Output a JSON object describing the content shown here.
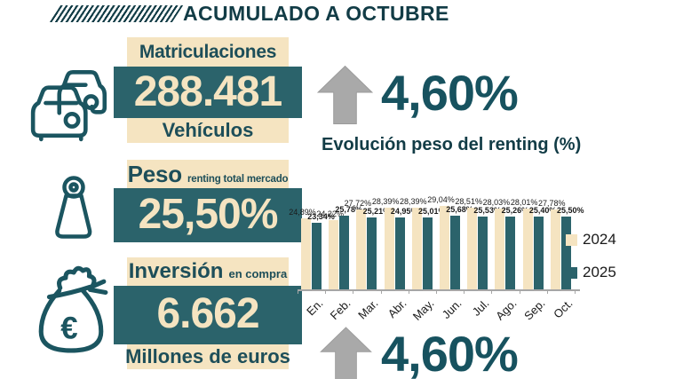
{
  "header": {
    "title": "ACUMULADO A OCTUBRE"
  },
  "stats": {
    "matriculaciones": {
      "label": "Matriculaciones",
      "value": "288.481",
      "unit": "Vehículos"
    },
    "peso": {
      "label": "Peso",
      "sublabel": "renting total mercado",
      "value": "25,50%"
    },
    "inversion": {
      "label": "Inversión",
      "sublabel": "en compra",
      "value": "6.662",
      "unit": "Millones de euros",
      "currency_symbol": "€"
    }
  },
  "growth": {
    "top": "4,60%",
    "bottom": "4,60%"
  },
  "chart_data": {
    "type": "bar",
    "title": "Evolución peso del renting (%)",
    "categories": [
      "En.",
      "Feb.",
      "Mar.",
      "Abr.",
      "May.",
      "Jun.",
      "Jul.",
      "Ago.",
      "Sep.",
      "Oct."
    ],
    "series": [
      {
        "name": "2024",
        "color": "#f5e4c1",
        "values": [
          24.89,
          24.22,
          27.72,
          28.39,
          28.39,
          29.04,
          28.51,
          28.03,
          28.01,
          27.78
        ]
      },
      {
        "name": "2025",
        "color": "#2b636b",
        "values": [
          23.34,
          25.78,
          25.21,
          24.95,
          25.01,
          25.68,
          25.53,
          25.26,
          25.4,
          25.5
        ]
      }
    ],
    "value_format": "es-percent",
    "xlabel": "",
    "ylabel": "",
    "ylim": [
      0,
      30
    ],
    "grid": false,
    "legend_position": "right"
  },
  "colors": {
    "ink": "#123c46",
    "teal": "#2b636b",
    "teal-text": "#1d4e59",
    "cream": "#f5e4c1",
    "accent": "#17525f",
    "icon-teal": "#1b5560",
    "arrow-gray": "#a9a9a9",
    "axis-gray": "#a6a6a6",
    "label-dark": "#1a1a1a"
  }
}
